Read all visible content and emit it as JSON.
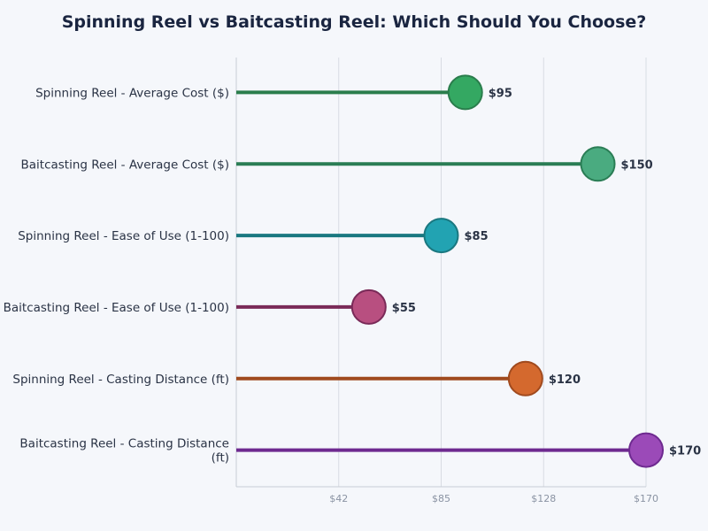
{
  "chart_data": {
    "type": "lollipop",
    "title": "Spinning Reel vs Baitcasting Reel: Which Should You Choose?",
    "categories": [
      "Spinning Reel - Average Cost ($)",
      "Baitcasting Reel - Average Cost ($)",
      "Spinning Reel - Ease of Use (1-100)",
      "Baitcasting Reel - Ease of Use (1-100)",
      "Spinning Reel - Casting Distance (ft)",
      "Baitcasting Reel - Casting Distance (ft)"
    ],
    "values": [
      95,
      150,
      85,
      55,
      120,
      170
    ],
    "data_labels": [
      "$95",
      "$150",
      "$85",
      "$55",
      "$120",
      "$170"
    ],
    "colors": [
      "#34a862",
      "#4aab80",
      "#22a3b2",
      "#b84f80",
      "#d4692e",
      "#9b4ab8"
    ],
    "stem_colors": [
      "#2a7d4c",
      "#2a7d55",
      "#1a7880",
      "#7a2a58",
      "#a04a1e",
      "#6e2a90"
    ],
    "xlim": [
      0,
      170
    ],
    "xticks": [
      42.5,
      85,
      127.5,
      170
    ],
    "xtick_labels": [
      "$42",
      "$85",
      "$128",
      "$170"
    ],
    "grid": "vertical"
  }
}
